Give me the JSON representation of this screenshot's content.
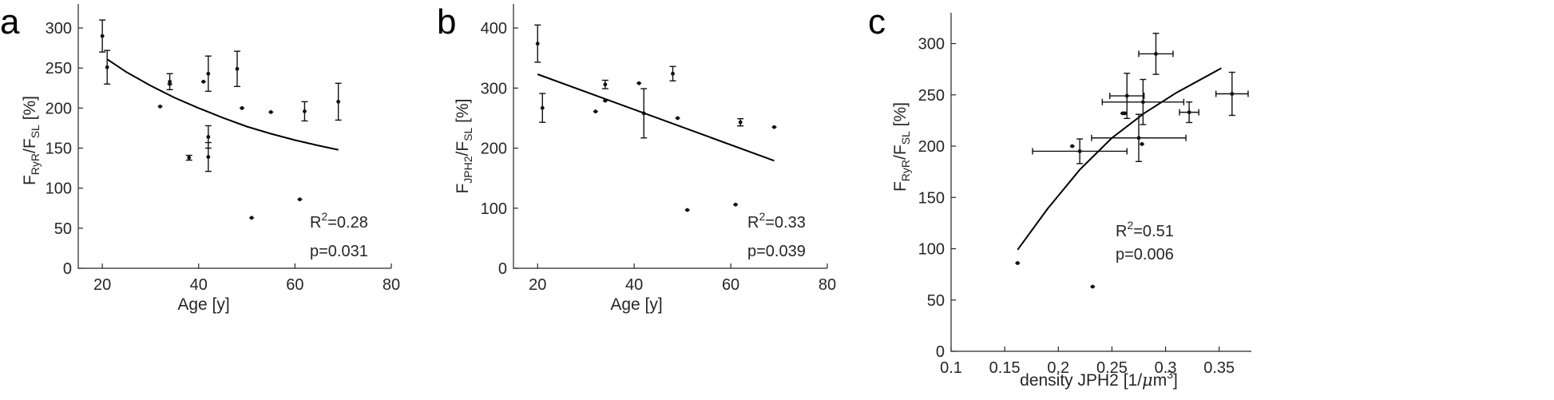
{
  "chart_data": [
    {
      "panel_label": "a",
      "type": "scatter",
      "xlabel": "Age [y]",
      "ylabel": {
        "p1": "F",
        "s1": "RyR",
        "p2": "/F",
        "s2": "SL",
        "p3": " [%]"
      },
      "xlim": [
        15,
        80
      ],
      "ylim": [
        0,
        330
      ],
      "xticks": [
        20,
        40,
        60,
        80
      ],
      "yticks": [
        0,
        50,
        100,
        150,
        200,
        250,
        300
      ],
      "grid": false,
      "points": [
        {
          "x": 20,
          "y": 290,
          "yerr": 20
        },
        {
          "x": 21,
          "y": 251,
          "yerr": 21
        },
        {
          "x": 32,
          "y": 202,
          "yerr": 1
        },
        {
          "x": 34,
          "y": 233,
          "yerr": 10
        },
        {
          "x": 34,
          "y": 230,
          "yerr": 1
        },
        {
          "x": 38,
          "y": 138,
          "yerr": 3
        },
        {
          "x": 41,
          "y": 233,
          "yerr": 1
        },
        {
          "x": 42,
          "y": 243,
          "yerr": 22
        },
        {
          "x": 42,
          "y": 164,
          "yerr": 14
        },
        {
          "x": 42,
          "y": 139,
          "yerr": 18
        },
        {
          "x": 48,
          "y": 249,
          "yerr": 22
        },
        {
          "x": 49,
          "y": 200,
          "yerr": 1
        },
        {
          "x": 51,
          "y": 63,
          "yerr": 1
        },
        {
          "x": 55,
          "y": 195,
          "yerr": 1
        },
        {
          "x": 61,
          "y": 86,
          "yerr": 1
        },
        {
          "x": 62,
          "y": 196,
          "yerr": 12
        },
        {
          "x": 69,
          "y": 208,
          "yerr": 23
        }
      ],
      "fit": {
        "x": [
          21,
          25,
          30,
          35,
          40,
          45,
          50,
          55,
          60,
          65,
          69
        ],
        "y": [
          261,
          245,
          228,
          213,
          200,
          188,
          177,
          168,
          160,
          153,
          148
        ]
      },
      "annotations": {
        "r2_label": "R",
        "r2_sup": "2",
        "r2_value": "=0.28",
        "p_text": "p=0.031"
      }
    },
    {
      "panel_label": "b",
      "type": "scatter",
      "xlabel": "Age [y]",
      "ylabel": {
        "p1": "F",
        "s1": "JPH2",
        "p2": "/F",
        "s2": "SL",
        "p3": " [%]"
      },
      "xlim": [
        15,
        80
      ],
      "ylim": [
        0,
        440
      ],
      "xticks": [
        20,
        40,
        60,
        80
      ],
      "yticks": [
        0,
        100,
        200,
        300,
        400
      ],
      "grid": false,
      "points": [
        {
          "x": 20,
          "y": 374,
          "yerr": 31
        },
        {
          "x": 21,
          "y": 267,
          "yerr": 24
        },
        {
          "x": 32,
          "y": 261,
          "yerr": 1
        },
        {
          "x": 34,
          "y": 306,
          "yerr": 7
        },
        {
          "x": 34,
          "y": 279,
          "yerr": 1
        },
        {
          "x": 41,
          "y": 308,
          "yerr": 1
        },
        {
          "x": 42,
          "y": 258,
          "yerr": 41
        },
        {
          "x": 48,
          "y": 324,
          "yerr": 12
        },
        {
          "x": 49,
          "y": 250,
          "yerr": 1
        },
        {
          "x": 51,
          "y": 97,
          "yerr": 1
        },
        {
          "x": 61,
          "y": 106,
          "yerr": 1
        },
        {
          "x": 62,
          "y": 243,
          "yerr": 6
        },
        {
          "x": 69,
          "y": 235,
          "yerr": 1
        }
      ],
      "fit": {
        "x": [
          20,
          69
        ],
        "y": [
          323,
          179
        ]
      },
      "annotations": {
        "r2_label": "R",
        "r2_sup": "2",
        "r2_value": "=0.33",
        "p_text": "p=0.039"
      }
    },
    {
      "panel_label": "c",
      "type": "scatter",
      "xlabel": {
        "prefix": "density JPH2 [1/",
        "mu": "μ",
        "unit": "m",
        "sup": "3",
        "suffix": "]"
      },
      "ylabel": {
        "p1": "F",
        "s1": "RyR",
        "p2": "/F",
        "s2": "SL",
        "p3": " [%]"
      },
      "xlim": [
        0.1,
        0.38
      ],
      "ylim": [
        0,
        330
      ],
      "xticks": [
        0.1,
        0.15,
        0.2,
        0.25,
        0.3,
        0.35
      ],
      "xtick_labels": [
        "0.1",
        "0.15",
        "0.2",
        "0.25",
        "0.3",
        "0.35"
      ],
      "yticks": [
        0,
        50,
        100,
        150,
        200,
        250,
        300
      ],
      "grid": false,
      "points": [
        {
          "x": 0.162,
          "y": 86,
          "xerr": 0,
          "yerr": 1
        },
        {
          "x": 0.232,
          "y": 63,
          "xerr": 0,
          "yerr": 1
        },
        {
          "x": 0.213,
          "y": 200,
          "xerr": 0,
          "yerr": 1
        },
        {
          "x": 0.22,
          "y": 195,
          "xerr": 0.044,
          "yerr": 12
        },
        {
          "x": 0.26,
          "y": 232,
          "xerr": 0,
          "yerr": 1
        },
        {
          "x": 0.262,
          "y": 232,
          "xerr": 0,
          "yerr": 1
        },
        {
          "x": 0.264,
          "y": 249,
          "xerr": 0.016,
          "yerr": 22
        },
        {
          "x": 0.275,
          "y": 208,
          "xerr": 0.044,
          "yerr": 23
        },
        {
          "x": 0.278,
          "y": 202,
          "xerr": 0,
          "yerr": 1
        },
        {
          "x": 0.279,
          "y": 243,
          "xerr": 0.038,
          "yerr": 22
        },
        {
          "x": 0.291,
          "y": 290,
          "xerr": 0.016,
          "yerr": 20
        },
        {
          "x": 0.322,
          "y": 233,
          "xerr": 0.009,
          "yerr": 10
        },
        {
          "x": 0.362,
          "y": 251,
          "xerr": 0.015,
          "yerr": 21
        }
      ],
      "fit": {
        "x": [
          0.162,
          0.19,
          0.22,
          0.25,
          0.28,
          0.31,
          0.352
        ],
        "y": [
          99,
          139,
          177,
          208,
          232,
          252,
          276
        ]
      },
      "annotations": {
        "r2_label": "R",
        "r2_sup": "2",
        "r2_value": "=0.51",
        "p_text": "p=0.006"
      }
    }
  ]
}
